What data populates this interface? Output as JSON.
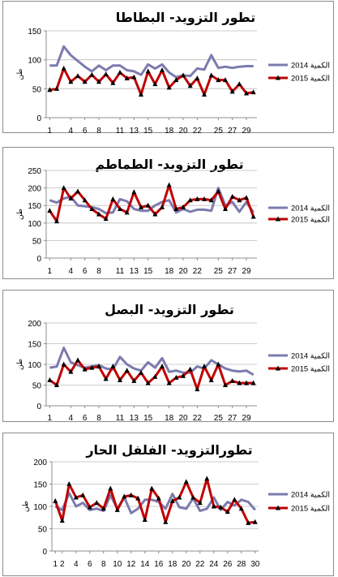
{
  "colors": {
    "y2014": "#7b7baf",
    "y2015": "#c00000",
    "axis": "#8c8c8c",
    "grid": "#bdbdbd"
  },
  "chart_data": [
    {
      "type": "line",
      "title": "تطور التزويد- البطاطا",
      "ylabel": "طن",
      "ylim": [
        0,
        150
      ],
      "yticks": [
        "0",
        "50",
        "100",
        "150"
      ],
      "x": [
        1,
        2,
        3,
        4,
        5,
        6,
        7,
        8,
        9,
        10,
        11,
        12,
        13,
        14,
        15,
        16,
        17,
        18,
        19,
        20,
        21,
        22,
        23,
        24,
        25,
        26,
        27,
        28,
        29,
        30
      ],
      "xticks": [
        "1",
        "4",
        "6",
        "8",
        "11",
        "13",
        "15",
        "18",
        "20",
        "22",
        "25",
        "27",
        "29"
      ],
      "series": [
        {
          "name": "2014 الكمية",
          "values": [
            90,
            90,
            123,
            108,
            98,
            88,
            80,
            90,
            82,
            90,
            90,
            82,
            80,
            74,
            92,
            85,
            92,
            78,
            70,
            73,
            72,
            85,
            83,
            108,
            86,
            88,
            86,
            88,
            89,
            89
          ]
        },
        {
          "name": "2015 الكمية",
          "values": [
            48,
            50,
            85,
            62,
            72,
            62,
            74,
            62,
            75,
            60,
            78,
            68,
            70,
            40,
            80,
            58,
            82,
            52,
            65,
            73,
            55,
            68,
            40,
            73,
            65,
            65,
            45,
            58,
            42,
            44
          ]
        }
      ]
    },
    {
      "type": "line",
      "title": "تطور التزويد- الطماطم",
      "ylabel": "طن",
      "ylim": [
        0,
        250
      ],
      "yticks": [
        "0",
        "50",
        "100",
        "150",
        "200",
        "250"
      ],
      "x": [
        1,
        2,
        3,
        4,
        5,
        6,
        7,
        8,
        9,
        10,
        11,
        12,
        13,
        14,
        15,
        16,
        17,
        18,
        19,
        20,
        21,
        22,
        23,
        24,
        25,
        26,
        27,
        28,
        29,
        30
      ],
      "xticks": [
        "1",
        "4",
        "6",
        "8",
        "11",
        "13",
        "15",
        "18",
        "20",
        "22",
        "25",
        "27",
        "29"
      ],
      "series": [
        {
          "name": "2014 الكمية",
          "values": [
            165,
            158,
            170,
            175,
            150,
            148,
            145,
            140,
            128,
            130,
            168,
            162,
            140,
            135,
            135,
            150,
            160,
            165,
            130,
            140,
            132,
            138,
            138,
            135,
            200,
            150,
            160,
            132,
            160,
            130
          ]
        },
        {
          "name": "2015 الكمية",
          "values": [
            135,
            105,
            200,
            170,
            190,
            165,
            140,
            125,
            112,
            168,
            140,
            130,
            188,
            145,
            150,
            125,
            145,
            208,
            140,
            145,
            165,
            168,
            168,
            165,
            190,
            140,
            175,
            165,
            172,
            118
          ]
        }
      ]
    },
    {
      "type": "line",
      "title": "تطور التزويد- البصل",
      "ylabel": "طن",
      "ylim": [
        0,
        200
      ],
      "yticks": [
        "0",
        "50",
        "100",
        "150",
        "200"
      ],
      "x": [
        1,
        2,
        3,
        4,
        5,
        6,
        7,
        8,
        9,
        10,
        11,
        12,
        13,
        14,
        15,
        16,
        17,
        18,
        19,
        20,
        21,
        22,
        23,
        24,
        25,
        26,
        27,
        28,
        29,
        30
      ],
      "xticks": [
        "1",
        "4",
        "6",
        "8",
        "11",
        "13",
        "15",
        "18",
        "20",
        "22",
        "25",
        "27",
        "29"
      ],
      "series": [
        {
          "name": "2014 الكمية",
          "values": [
            92,
            95,
            140,
            105,
            98,
            92,
            95,
            98,
            90,
            88,
            118,
            100,
            90,
            85,
            105,
            92,
            115,
            82,
            85,
            80,
            80,
            95,
            90,
            110,
            100,
            90,
            85,
            83,
            85,
            75
          ]
        },
        {
          "name": "2015 الكمية",
          "values": [
            62,
            50,
            100,
            82,
            110,
            88,
            92,
            95,
            65,
            95,
            62,
            85,
            60,
            80,
            55,
            70,
            95,
            55,
            68,
            72,
            88,
            40,
            95,
            62,
            100,
            50,
            60,
            55,
            55,
            55
          ]
        }
      ]
    },
    {
      "type": "line",
      "title": "تطورالتزويد- الفلفل الحار",
      "ylabel": "طن",
      "ylim": [
        0,
        200
      ],
      "yticks": [
        "0",
        "50",
        "100",
        "150",
        "200"
      ],
      "x": [
        1,
        2,
        3,
        4,
        5,
        6,
        7,
        8,
        9,
        10,
        11,
        12,
        13,
        14,
        15,
        16,
        17,
        18,
        19,
        20,
        21,
        22,
        23,
        24,
        25,
        26,
        27,
        28,
        29,
        30
      ],
      "xticks": [
        "1",
        "2",
        "4",
        "6",
        "8",
        "10",
        "12",
        "14",
        "16",
        "18",
        "20",
        "22",
        "24",
        "26",
        "28",
        "30"
      ],
      "series": [
        {
          "name": "2014 الكمية",
          "values": [
            100,
            92,
            130,
            100,
            108,
            92,
            95,
            90,
            125,
            95,
            120,
            85,
            95,
            115,
            115,
            110,
            95,
            128,
            98,
            95,
            118,
            90,
            95,
            120,
            92,
            110,
            102,
            115,
            110,
            92
          ]
        },
        {
          "name": "2015 الكمية",
          "values": [
            112,
            68,
            150,
            120,
            125,
            98,
            108,
            95,
            140,
            92,
            122,
            125,
            118,
            70,
            140,
            118,
            65,
            112,
            120,
            155,
            120,
            108,
            162,
            100,
            98,
            88,
            115,
            95,
            63,
            65
          ]
        }
      ]
    }
  ]
}
